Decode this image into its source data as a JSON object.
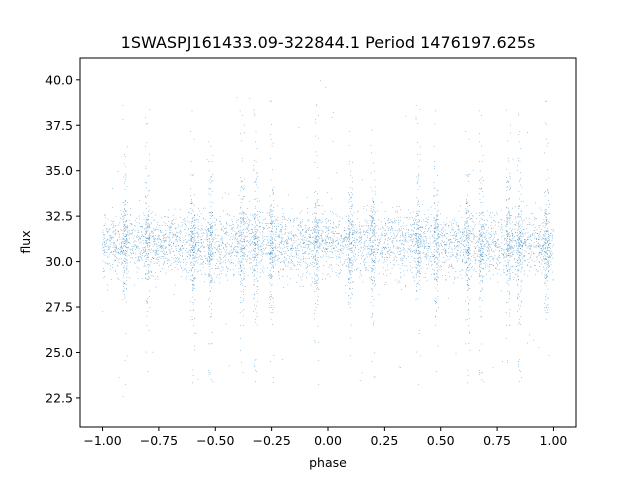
{
  "chart_data": {
    "type": "scatter",
    "title": "1SWASPJ161433.09-322844.1 Period 1476197.625s",
    "xlabel": "phase",
    "ylabel": "flux",
    "xlim": [
      -1.1,
      1.1
    ],
    "ylim": [
      20.9,
      41.2
    ],
    "x_ticks": [
      -1.0,
      -0.75,
      -0.5,
      -0.25,
      0.0,
      0.25,
      0.5,
      0.75,
      1.0
    ],
    "x_tick_labels": [
      "−1.00",
      "−0.75",
      "−0.50",
      "−0.25",
      "0.00",
      "0.25",
      "0.50",
      "0.75",
      "1.00"
    ],
    "y_ticks": [
      22.5,
      25.0,
      27.5,
      30.0,
      32.5,
      35.0,
      37.5,
      40.0
    ],
    "y_tick_labels": [
      "22.5",
      "25.0",
      "27.5",
      "30.0",
      "32.5",
      "35.0",
      "37.5",
      "40.0"
    ],
    "grid": false,
    "marker_color": "#1f77b4",
    "series": [
      {
        "phase_range": [
          -1.0,
          1.0
        ],
        "flux_baseline": 31.0,
        "flux_spread_typical": [
          28.5,
          33.5
        ],
        "flux_extremes": [
          21.9,
          40.6
        ],
        "vertical_streak_phases": [
          -0.9,
          -0.8,
          -0.6,
          -0.52,
          -0.38,
          -0.32,
          -0.25,
          -0.05,
          0.1,
          0.2,
          0.4,
          0.48,
          0.62,
          0.68,
          0.8,
          0.85,
          0.97
        ]
      }
    ]
  }
}
